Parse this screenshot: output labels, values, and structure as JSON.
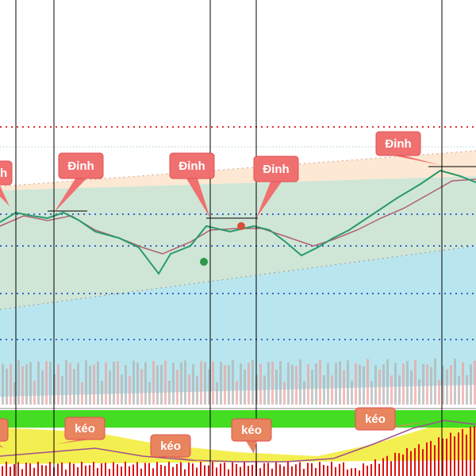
{
  "annotations": {
    "peaks": [
      "Đỉnh",
      "Đỉnh",
      "Đỉnh",
      "Đỉnh",
      "Đỉnh"
    ],
    "pulls": [
      "kéo",
      "kéo",
      "kéo",
      "kéo",
      "kéo"
    ]
  }
}
